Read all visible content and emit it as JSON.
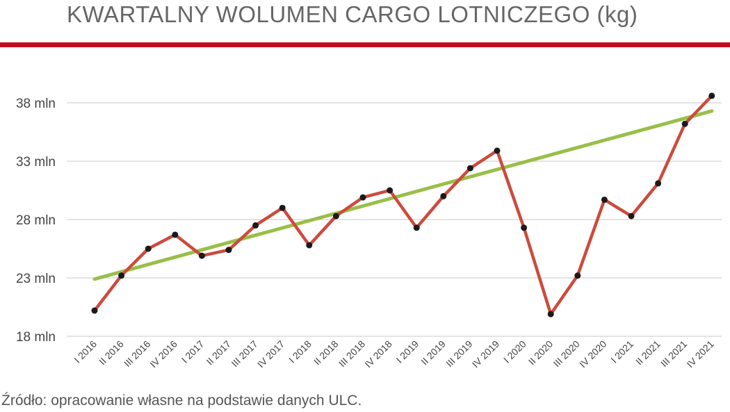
{
  "title": "KWARTALNY WOLUMEN CARGO LOTNICZEGO (kg)",
  "source": "Źródło: opracowanie własne na podstawie danych ULC.",
  "colors": {
    "accent_bar": "#c00d1e",
    "series_line": "#cc4b3c",
    "trend_line": "#98bf48",
    "marker": "#1a1a1a",
    "grid": "#c8c8c8"
  },
  "chart_data": {
    "type": "line",
    "title": "KWARTALNY WOLUMEN CARGO LOTNICZEGO (kg)",
    "xlabel": "",
    "ylabel": "",
    "ylim": [
      18,
      40
    ],
    "yticks": [
      18,
      23,
      28,
      33,
      38
    ],
    "ytick_labels": [
      "18 mln",
      "23 mln",
      "28 mln",
      "33 mln",
      "38 mln"
    ],
    "grid": true,
    "legend": "none",
    "categories": [
      "I 2016",
      "II 2016",
      "III 2016",
      "IV 2016",
      "I 2017",
      "II 2017",
      "III 2017",
      "IV 2017",
      "I 2018",
      "II 2018",
      "III 2018",
      "IV 2018",
      "I 2019",
      "II 2019",
      "III 2019",
      "IV 2019",
      "I 2020",
      "II 2020",
      "III 2020",
      "IV 2020",
      "I 2021",
      "II 2021",
      "III 2021",
      "IV 2021"
    ],
    "series": [
      {
        "values": [
          20.2,
          23.2,
          25.5,
          26.7,
          24.9,
          25.4,
          27.5,
          29.0,
          25.8,
          28.3,
          29.9,
          30.5,
          27.3,
          30.0,
          32.4,
          33.9,
          27.3,
          19.9,
          23.2,
          29.7,
          28.3,
          31.1,
          36.2,
          38.6
        ]
      }
    ],
    "trend": {
      "start": 22.9,
      "end": 37.3
    }
  }
}
